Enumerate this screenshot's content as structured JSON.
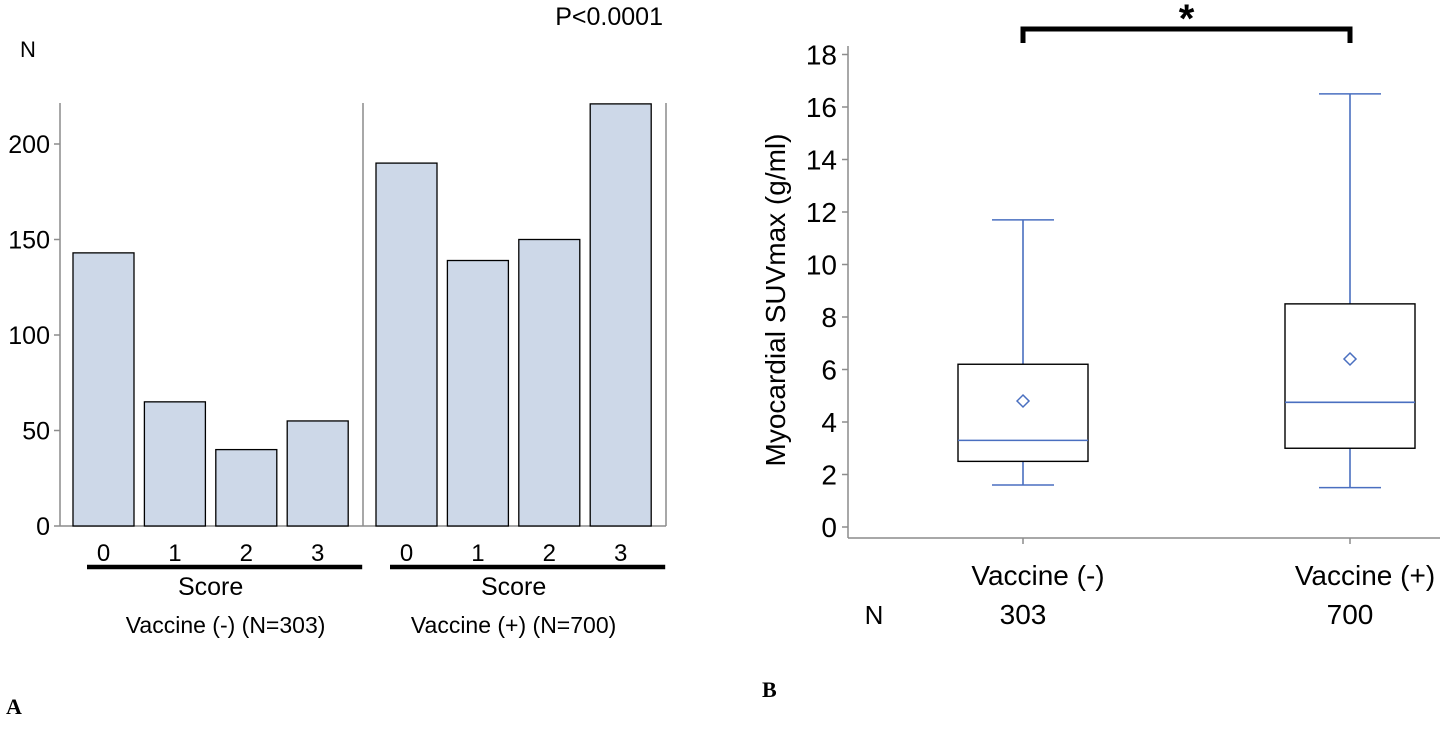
{
  "chart_data": [
    {
      "panel": "A",
      "type": "bar",
      "ylabel": "N",
      "yticks": [
        0,
        50,
        100,
        150,
        200
      ],
      "ylim": [
        0,
        220
      ],
      "annotation": "P<0.0001",
      "xlabel": "Score",
      "groups": [
        {
          "label": "Vaccine (-)  (N=303)",
          "categories": [
            "0",
            "1",
            "2",
            "3"
          ],
          "values": [
            143,
            65,
            40,
            55
          ]
        },
        {
          "label": "Vaccine (+) (N=700)",
          "categories": [
            "0",
            "1",
            "2",
            "3"
          ],
          "values": [
            190,
            139,
            150,
            221
          ]
        }
      ],
      "bar_color": "#cdd8e8",
      "grid": false
    },
    {
      "panel": "B",
      "type": "box",
      "ylabel": "Myocardial SUVmax (g/ml)",
      "yticks": [
        0,
        2,
        4,
        6,
        8,
        10,
        12,
        14,
        16,
        18
      ],
      "ylim": [
        0,
        18
      ],
      "significance": "*",
      "n_label": "N",
      "categories": [
        "Vaccine (-)",
        "Vaccine (+)"
      ],
      "n_values": [
        "303",
        "700"
      ],
      "boxes": [
        {
          "name": "Vaccine (-)",
          "whisker_low": 1.6,
          "q1": 2.5,
          "median": 3.3,
          "q3": 6.2,
          "whisker_high": 11.7,
          "mean": 4.8
        },
        {
          "name": "Vaccine (+)",
          "whisker_low": 1.5,
          "q1": 3.0,
          "median": 4.75,
          "q3": 8.5,
          "whisker_high": 16.5,
          "mean": 6.4
        }
      ],
      "colors": {
        "whisker": "#4a6fc0",
        "mean_marker": "#4a6fc0",
        "box": "#000000"
      },
      "grid": false
    }
  ]
}
